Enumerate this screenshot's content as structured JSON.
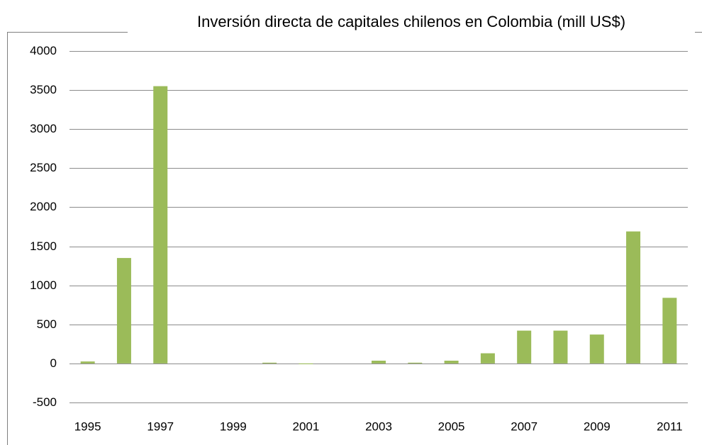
{
  "chart_data": {
    "type": "bar",
    "title": "Inversión directa de capitales chilenos en Colombia (mill US$)",
    "categories": [
      "1995",
      null,
      "1997",
      null,
      "1999",
      null,
      "2001",
      null,
      "2003",
      null,
      "2005",
      null,
      "2007",
      null,
      "2009",
      null,
      "2011"
    ],
    "values": [
      25,
      1350,
      3550,
      0,
      0,
      10,
      -10,
      0,
      35,
      10,
      35,
      130,
      420,
      420,
      370,
      1690,
      840
    ],
    "color": "#9bbb59",
    "ylim": [
      -500,
      4000
    ],
    "yticks": [
      -500,
      0,
      500,
      1000,
      1500,
      2000,
      2500,
      3000,
      3500,
      4000
    ],
    "grid": true
  }
}
